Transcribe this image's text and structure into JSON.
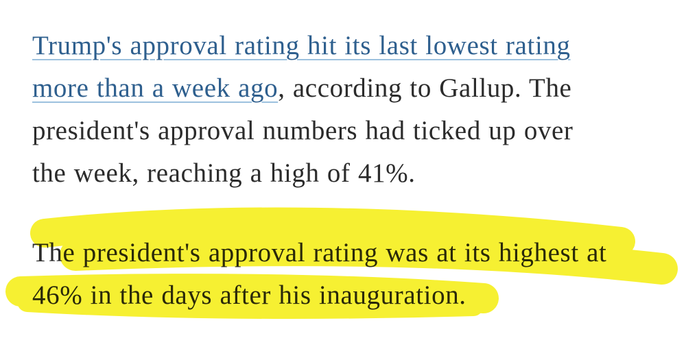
{
  "paragraphs": [
    {
      "lines": [
        [
          {
            "text": "Trump's approval rating hit its last lowest rating",
            "link": true
          }
        ],
        [
          {
            "text": "more than a week ago",
            "link": true
          },
          {
            "text": ", according to Gallup. The"
          }
        ],
        [
          {
            "text": "president's approval numbers had ticked up over"
          }
        ],
        [
          {
            "text": "the week, reaching a high of 41%."
          }
        ]
      ]
    },
    {
      "lines": [
        [
          {
            "text": "The president's approval rating was at its highest at"
          }
        ],
        [
          {
            "text": "46% in the days after his inauguration."
          }
        ]
      ]
    }
  ]
}
